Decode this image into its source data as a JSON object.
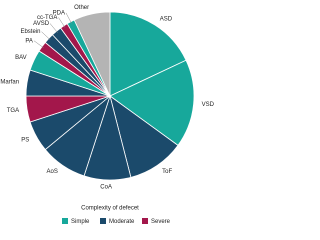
{
  "chart_data": {
    "type": "pie",
    "categories": [
      "ASD",
      "VSD",
      "ToF",
      "CoA",
      "AoS",
      "PS",
      "TGA",
      "Marfan",
      "BAV",
      "PA",
      "Ebstein",
      "AVSD",
      "cc-TGA",
      "PDA",
      "Other"
    ],
    "values": [
      18,
      17,
      11,
      9,
      9,
      6,
      5,
      5,
      4,
      2,
      2,
      2,
      1.5,
      1.5,
      7
    ],
    "colors": [
      "#17a89b",
      "#17a89b",
      "#1b4a6b",
      "#1b4a6b",
      "#1b4a6b",
      "#1b4a6b",
      "#a3174b",
      "#1b4a6b",
      "#17a89b",
      "#a3174b",
      "#1b4a6b",
      "#1b4a6b",
      "#a3174b",
      "#17a89b",
      "#b4b4b4"
    ],
    "legend_title": "Complexity of defecet",
    "legend": [
      {
        "name": "Simple",
        "color": "#17a89b"
      },
      {
        "name": "Moderate",
        "color": "#1b4a6b"
      },
      {
        "name": "Severe",
        "color": "#a3174b"
      }
    ]
  }
}
